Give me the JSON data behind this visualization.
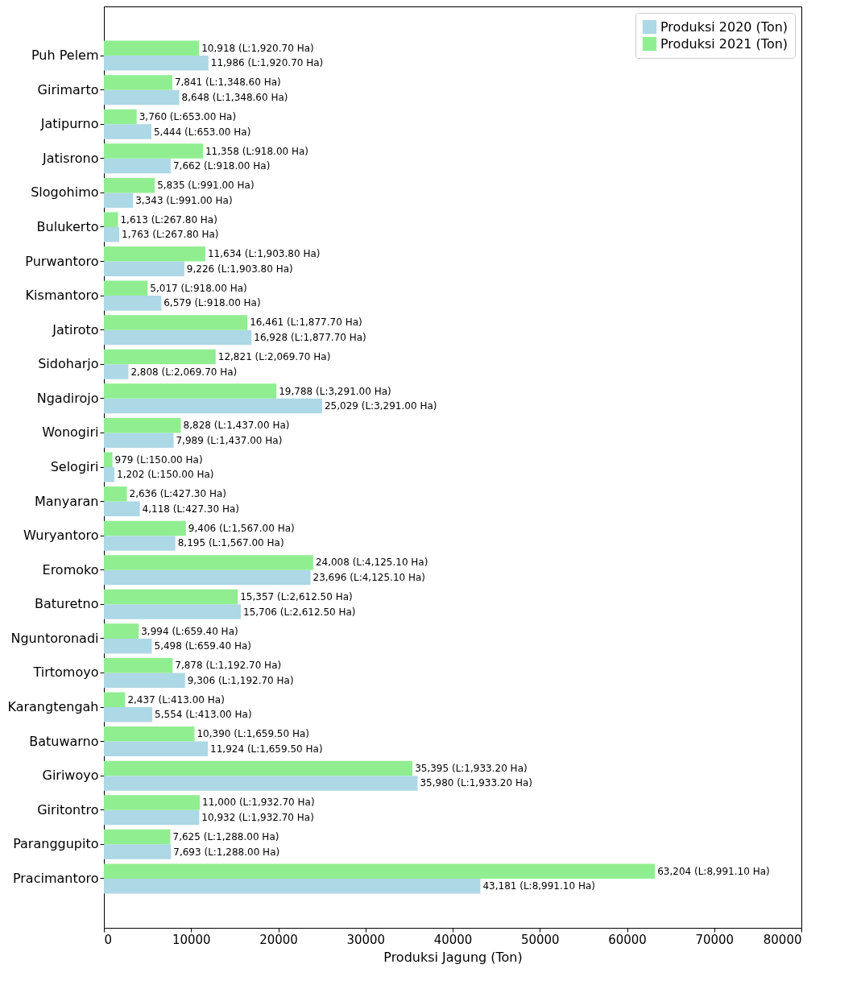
{
  "chart_data": {
    "type": "bar",
    "orientation": "horizontal",
    "xlabel": "Produksi Jagung (Ton)",
    "categories": [
      "Puh Pelem",
      "Girimarto",
      "Jatipurno",
      "Jatisrono",
      "Slogohimo",
      "Bulukerto",
      "Purwantoro",
      "Kismantoro",
      "Jatiroto",
      "Sidoharjo",
      "Ngadirojo",
      "Wonogiri",
      "Selogiri",
      "Manyaran",
      "Wuryantoro",
      "Eromoko",
      "Baturetno",
      "Nguntoronadi",
      "Tirtomoyo",
      "Karangtengah",
      "Batuwarno",
      "Giriwoyo",
      "Giritontro",
      "Paranggupito",
      "Pracimantoro"
    ],
    "series": [
      {
        "name": "Produksi 2020 (Ton)",
        "color": "#add8e6",
        "values": [
          11986,
          8648,
          5444,
          7662,
          3343,
          1763,
          9226,
          6579,
          16928,
          2808,
          25029,
          7989,
          1202,
          4118,
          8195,
          23696,
          15706,
          5498,
          9306,
          5554,
          11924,
          35980,
          10932,
          7693,
          43181
        ],
        "value_labels": [
          "11,986 (L:1,920.70 Ha)",
          "8,648 (L:1,348.60 Ha)",
          "5,444 (L:653.00 Ha)",
          "7,662 (L:918.00 Ha)",
          "3,343 (L:991.00 Ha)",
          "1,763 (L:267.80 Ha)",
          "9,226 (L:1,903.80 Ha)",
          "6,579 (L:918.00 Ha)",
          "16,928 (L:1,877.70 Ha)",
          "2,808 (L:2,069.70 Ha)",
          "25,029 (L:3,291.00 Ha)",
          "7,989 (L:1,437.00 Ha)",
          "1,202 (L:150.00 Ha)",
          "4,118 (L:427.30 Ha)",
          "8,195 (L:1,567.00 Ha)",
          "23,696 (L:4,125.10 Ha)",
          "15,706 (L:2,612.50 Ha)",
          "5,498 (L:659.40 Ha)",
          "9,306 (L:1,192.70 Ha)",
          "5,554 (L:413.00 Ha)",
          "11,924 (L:1,659.50 Ha)",
          "35,980 (L:1,933.20 Ha)",
          "10,932 (L:1,932.70 Ha)",
          "7,693 (L:1,288.00 Ha)",
          "43,181 (L:8,991.10 Ha)"
        ]
      },
      {
        "name": "Produksi 2021 (Ton)",
        "color": "#90ee90",
        "values": [
          10918,
          7841,
          3760,
          11358,
          5835,
          1613,
          11634,
          5017,
          16461,
          12821,
          19788,
          8828,
          979,
          2636,
          9406,
          24008,
          15357,
          3994,
          7878,
          2437,
          10390,
          35395,
          11000,
          7625,
          63204
        ],
        "value_labels": [
          "10,918 (L:1,920.70 Ha)",
          "7,841 (L:1,348.60 Ha)",
          "3,760 (L:653.00 Ha)",
          "11,358 (L:918.00 Ha)",
          "5,835 (L:991.00 Ha)",
          "1,613 (L:267.80 Ha)",
          "11,634 (L:1,903.80 Ha)",
          "5,017 (L:918.00 Ha)",
          "16,461 (L:1,877.70 Ha)",
          "12,821 (L:2,069.70 Ha)",
          "19,788 (L:3,291.00 Ha)",
          "8,828 (L:1,437.00 Ha)",
          "979 (L:150.00 Ha)",
          "2,636 (L:427.30 Ha)",
          "9,406 (L:1,567.00 Ha)",
          "24,008 (L:4,125.10 Ha)",
          "15,357 (L:2,612.50 Ha)",
          "3,994 (L:659.40 Ha)",
          "7,878 (L:1,192.70 Ha)",
          "2,437 (L:413.00 Ha)",
          "10,390 (L:1,659.50 Ha)",
          "35,395 (L:1,933.20 Ha)",
          "11,000 (L:1,932.70 Ha)",
          "7,625 (L:1,288.00 Ha)",
          "63,204 (L:8,991.10 Ha)"
        ]
      }
    ],
    "xlim": [
      0,
      80000
    ],
    "xticks": [
      0,
      10000,
      20000,
      30000,
      40000,
      50000,
      60000,
      70000,
      80000
    ],
    "legend": "top right"
  }
}
